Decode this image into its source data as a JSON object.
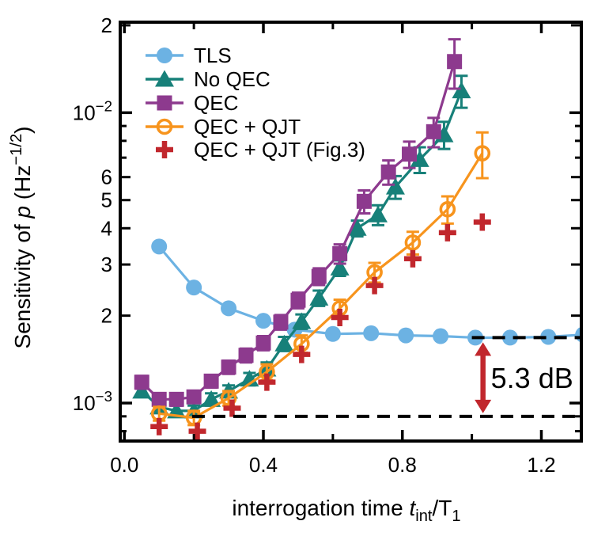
{
  "figure": {
    "background": "#ffffff",
    "type": "scientific-line-plot"
  },
  "chart_data": {
    "type": "line",
    "title": "",
    "xlabel_parts": [
      {
        "t": "interrogation time ",
        "style": "normal"
      },
      {
        "t": "t",
        "style": "italic"
      },
      {
        "t": "int",
        "style": "sub"
      },
      {
        "t": "/T",
        "style": "normal"
      },
      {
        "t": "1",
        "style": "sub"
      }
    ],
    "ylabel_parts": [
      {
        "t": "Sensitivity of ",
        "style": "normal"
      },
      {
        "t": "p",
        "style": "italic"
      },
      {
        "t": " (Hz",
        "style": "normal"
      },
      {
        "t": "−1/2",
        "style": "sup"
      },
      {
        "t": ")",
        "style": "normal"
      }
    ],
    "axes": {
      "xlim": [
        -0.012,
        1.315
      ],
      "ylim": [
        0.00074,
        0.0205
      ],
      "y_scale": "log",
      "grid": false
    },
    "x_axis": {
      "ticks": [
        {
          "v": 0.0,
          "label": "0.0",
          "major": true
        },
        {
          "v": 0.2,
          "major": false
        },
        {
          "v": 0.4,
          "label": "0.4",
          "major": true
        },
        {
          "v": 0.6,
          "major": false
        },
        {
          "v": 0.8,
          "label": "0.8",
          "major": true
        },
        {
          "v": 1.0,
          "major": false
        },
        {
          "v": 1.2,
          "label": "1.2",
          "major": true
        }
      ]
    },
    "y_axis": {
      "ticks": [
        {
          "v": 0.02,
          "label": "2"
        },
        {
          "v": 0.01,
          "label": "10",
          "exp": "−2",
          "major": true
        },
        {
          "v": 0.009
        },
        {
          "v": 0.008
        },
        {
          "v": 0.007
        },
        {
          "v": 0.006,
          "label": "6"
        },
        {
          "v": 0.005,
          "label": "5"
        },
        {
          "v": 0.004,
          "label": "4"
        },
        {
          "v": 0.003,
          "label": "3"
        },
        {
          "v": 0.002,
          "label": "2"
        },
        {
          "v": 0.001,
          "label": "10",
          "exp": "−3",
          "major": true
        },
        {
          "v": 0.0009
        },
        {
          "v": 0.0008
        }
      ]
    },
    "series": [
      {
        "id": "tls",
        "label": "TLS",
        "color": "#6cb2e3",
        "marker": "circle",
        "line": true,
        "x": [
          0.1,
          0.2,
          0.3,
          0.4,
          0.49,
          0.6,
          0.71,
          0.81,
          0.91,
          1.01,
          1.11,
          1.22,
          1.32
        ],
        "y": [
          0.00346,
          0.0025,
          0.00212,
          0.00192,
          0.00179,
          0.00173,
          0.00174,
          0.00171,
          0.0017,
          0.00168,
          0.00168,
          0.00169,
          0.00172
        ]
      },
      {
        "id": "no-qec",
        "label": "No QEC",
        "color": "#178079",
        "marker": "triangle",
        "line": true,
        "x": [
          0.05,
          0.1,
          0.15,
          0.2,
          0.25,
          0.3,
          0.36,
          0.41,
          0.46,
          0.51,
          0.56,
          0.62,
          0.67,
          0.73,
          0.78,
          0.85,
          0.92,
          0.97
        ],
        "y": [
          0.0011,
          0.00097,
          0.00094,
          0.00094,
          0.00103,
          0.0011,
          0.00121,
          0.00131,
          0.0016,
          0.00191,
          0.0023,
          0.00292,
          0.004,
          0.00445,
          0.00555,
          0.0069,
          0.0084,
          0.0119
        ],
        "yerr": [
          4e-05,
          4e-05,
          4e-05,
          4e-05,
          5e-05,
          5e-05,
          6e-05,
          7e-05,
          9e-05,
          0.00011,
          0.00014,
          0.00018,
          0.00025,
          0.00035,
          0.0005,
          0.0007,
          0.0009,
          0.0015
        ]
      },
      {
        "id": "qec",
        "label": "QEC",
        "color": "#8d3a8e",
        "marker": "square",
        "line": true,
        "x": [
          0.05,
          0.1,
          0.15,
          0.2,
          0.25,
          0.3,
          0.35,
          0.4,
          0.45,
          0.5,
          0.56,
          0.62,
          0.69,
          0.76,
          0.82,
          0.89,
          0.95
        ],
        "y": [
          0.00118,
          0.00103,
          0.00103,
          0.00105,
          0.00119,
          0.00133,
          0.00146,
          0.00161,
          0.0019,
          0.00226,
          0.00273,
          0.00327,
          0.00495,
          0.00625,
          0.0072,
          0.0086,
          0.015
        ],
        "yerr": [
          6e-05,
          5e-05,
          5e-05,
          5e-05,
          6e-05,
          7e-05,
          8e-05,
          9e-05,
          0.00011,
          0.00014,
          0.00018,
          0.00025,
          0.00045,
          0.0006,
          0.00075,
          0.001,
          0.0029
        ]
      },
      {
        "id": "qec-qjt",
        "label": "QEC + QJT",
        "color": "#f7941d",
        "marker": "circle-open",
        "line": true,
        "x": [
          0.1,
          0.2,
          0.3,
          0.41,
          0.51,
          0.62,
          0.72,
          0.83,
          0.93,
          1.03
        ],
        "y": [
          0.00092,
          0.00089,
          0.00104,
          0.00128,
          0.0016,
          0.00212,
          0.00282,
          0.00357,
          0.00465,
          0.00725
        ],
        "yerr": [
          5e-05,
          5e-05,
          6e-05,
          8e-05,
          0.00011,
          0.00015,
          0.00022,
          0.00032,
          0.0005,
          0.0013
        ]
      },
      {
        "id": "qec-qjt-fig3",
        "label": "QEC + QJT (Fig.3)",
        "color": "#c1272d",
        "marker": "plus",
        "line": false,
        "x": [
          0.1,
          0.21,
          0.31,
          0.41,
          0.51,
          0.62,
          0.72,
          0.83,
          0.93,
          1.03
        ],
        "y": [
          0.00083,
          0.0008,
          0.00096,
          0.00118,
          0.00147,
          0.00197,
          0.00254,
          0.00314,
          0.00386,
          0.0042
        ]
      }
    ],
    "reference_lines": [
      {
        "id": "tls-limit",
        "y": 0.00168,
        "x1": 1.0,
        "x2": 1.312,
        "style": "dashed",
        "color": "#000000"
      },
      {
        "id": "qjt-minimum",
        "y": 0.0009,
        "x1": 0.195,
        "x2": 1.312,
        "style": "dashed",
        "color": "#000000"
      }
    ],
    "annotation": {
      "text": "5.3 dB",
      "color": "#c1272d",
      "arrow_x": 1.032,
      "from_y": 0.00168,
      "to_y": 0.0009
    },
    "legend": {
      "position": "upper-left",
      "entries": [
        {
          "series": "tls",
          "label": "TLS"
        },
        {
          "series": "no-qec",
          "label": "No QEC"
        },
        {
          "series": "qec",
          "label": "QEC"
        },
        {
          "series": "qec-qjt",
          "label": "QEC + QJT"
        },
        {
          "series": "qec-qjt-fig3",
          "label": "QEC + QJT (Fig.3)"
        }
      ]
    }
  }
}
